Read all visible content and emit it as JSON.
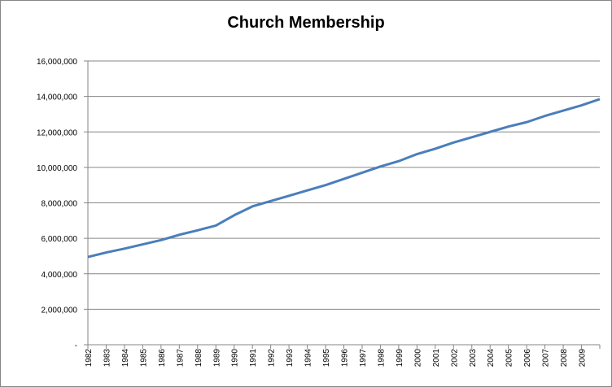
{
  "chart_data": {
    "type": "line",
    "title": "Church Membership",
    "categories": [
      "1982",
      "1983",
      "1984",
      "1985",
      "1986",
      "1987",
      "1988",
      "1989",
      "1990",
      "1991",
      "1992",
      "1993",
      "1994",
      "1995",
      "1996",
      "1997",
      "1998",
      "1999",
      "2000",
      "2001",
      "2002",
      "2003",
      "2004",
      "2005",
      "2006",
      "2007",
      "2008",
      "2009",
      null
    ],
    "values": [
      4950000,
      5200000,
      5420000,
      5660000,
      5900000,
      6200000,
      6450000,
      6720000,
      7300000,
      7800000,
      8100000,
      8400000,
      8700000,
      9000000,
      9350000,
      9700000,
      10050000,
      10350000,
      10750000,
      11050000,
      11400000,
      11700000,
      12000000,
      12300000,
      12550000,
      12900000,
      13200000,
      13500000,
      13850000
    ],
    "color": "#4a7ebb",
    "ylim": [
      0,
      16000000
    ],
    "yticks": [
      {
        "value": 0,
        "label": "-"
      },
      {
        "value": 2000000,
        "label": "2,000,000"
      },
      {
        "value": 4000000,
        "label": "4,000,000"
      },
      {
        "value": 6000000,
        "label": "6,000,000"
      },
      {
        "value": 8000000,
        "label": "8,000,000"
      },
      {
        "value": 10000000,
        "label": "10,000,000"
      },
      {
        "value": 12000000,
        "label": "12,000,000"
      },
      {
        "value": 14000000,
        "label": "14,000,000"
      },
      {
        "value": 16000000,
        "label": "16,000,000"
      }
    ],
    "grid": true
  }
}
